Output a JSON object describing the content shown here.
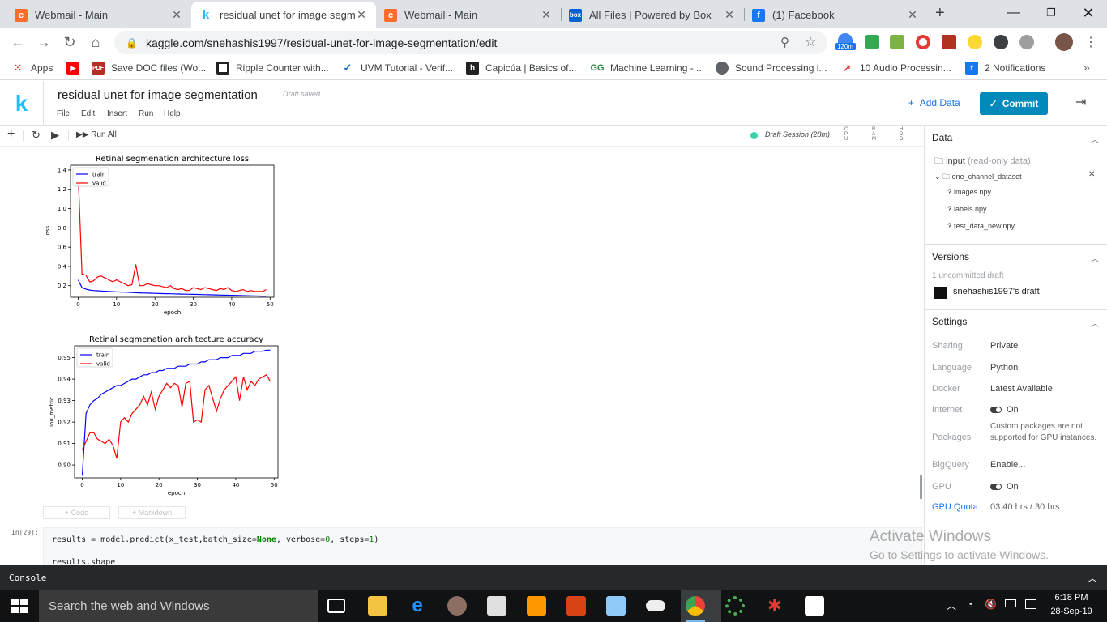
{
  "browser": {
    "tabs": [
      {
        "title": "Webmail - Main",
        "icon": "cpanel-icon",
        "color": "#ff6c2c"
      },
      {
        "title": "residual unet for image segme",
        "icon": "kaggle-icon",
        "color": "#20beff"
      },
      {
        "title": "Webmail - Main",
        "icon": "cpanel-icon",
        "color": "#ff6c2c"
      },
      {
        "title": "All Files | Powered by Box",
        "icon": "box-icon",
        "color": "#0061d5"
      },
      {
        "title": "(1) Facebook",
        "icon": "facebook-icon",
        "color": "#1877f2"
      }
    ],
    "url": "kaggle.com/snehashis1997/residual-unet-for-image-segmentation/edit",
    "extension_badge": "120m",
    "bookmarks": [
      {
        "label": "Apps"
      },
      {
        "label": ""
      },
      {
        "label": "Save DOC files (Wo..."
      },
      {
        "label": "Ripple Counter with..."
      },
      {
        "label": "UVM Tutorial - Verif..."
      },
      {
        "label": "Capicúa | Basics of..."
      },
      {
        "label": "Machine Learning -..."
      },
      {
        "label": "Sound Processing i..."
      },
      {
        "label": "10 Audio Processin..."
      },
      {
        "label": "2 Notifications"
      }
    ]
  },
  "kaggle": {
    "logo": "k",
    "title": "residual unet for image segmentation",
    "draft_status": "Draft saved",
    "menu": [
      "File",
      "Edit",
      "Insert",
      "Run",
      "Help"
    ],
    "add_data": "Add Data",
    "commit": "Commit",
    "run_all": "Run All",
    "session": "Draft Session (28m)",
    "meters": [
      "CPU",
      "RAM",
      "HDD"
    ],
    "add_code": "+ Code",
    "add_markdown": "+ Markdown",
    "cell_prompt": "In[29]:",
    "code_line1_pre": "results = model.predict(x_test,batch_size=",
    "code_line1_kw": "None",
    "code_line1_mid": ", verbose=",
    "code_line1_num1": "0",
    "code_line1_mid2": ", steps=",
    "code_line1_num2": "1",
    "code_line1_post": ")",
    "code_line2": "results.shape"
  },
  "panel": {
    "data_title": "Data",
    "input_label": "input",
    "input_note": "(read-only data)",
    "dataset": "one_channel_dataset",
    "files": [
      "images.npy",
      "labels.npy",
      "test_data_new.npy"
    ],
    "versions_title": "Versions",
    "uncommitted": "1 uncommitted draft",
    "draft_owner": "snehashis1997's draft",
    "settings_title": "Settings",
    "settings": [
      {
        "label": "Sharing",
        "value": "Private"
      },
      {
        "label": "Language",
        "value": "Python"
      },
      {
        "label": "Docker",
        "value": "Latest Available"
      },
      {
        "label": "Internet",
        "value": "On"
      },
      {
        "label": "Packages",
        "value": "Custom packages are not supported for GPU instances."
      },
      {
        "label": "BigQuery",
        "value": "Enable..."
      },
      {
        "label": "GPU",
        "value": "On"
      },
      {
        "label": "GPU Quota",
        "value": "03:40 hrs / 30 hrs"
      }
    ]
  },
  "console_label": "Console",
  "watermark": {
    "line1": "Activate Windows",
    "line2": "Go to Settings to activate Windows."
  },
  "taskbar": {
    "search": "Search the web and Windows",
    "time": "6:18 PM",
    "date": "28-Sep-19"
  },
  "chart_data": [
    {
      "type": "line",
      "title": "Retinal segmenation architecture loss",
      "xlabel": "epoch",
      "ylabel": "loss",
      "xlim": [
        -2,
        51
      ],
      "ylim": [
        0.08,
        1.45
      ],
      "xticks": [
        0,
        10,
        20,
        30,
        40,
        50
      ],
      "yticks": [
        0.2,
        0.4,
        0.6,
        0.8,
        1.0,
        1.2,
        1.4
      ],
      "ytick_labels": [
        "0.2",
        "0.4",
        "0.6",
        "0.8",
        "1.0",
        "1.2",
        "1.4"
      ],
      "legend": "top-left",
      "series": [
        {
          "name": "train",
          "color": "#0000ff",
          "x": [
            0,
            1,
            2,
            3,
            4,
            5,
            6,
            7,
            8,
            9,
            10,
            11,
            12,
            13,
            14,
            15,
            16,
            17,
            18,
            19,
            20,
            21,
            22,
            23,
            24,
            25,
            26,
            27,
            28,
            29,
            30,
            31,
            32,
            33,
            34,
            35,
            36,
            37,
            38,
            39,
            40,
            41,
            42,
            43,
            44,
            45,
            46,
            47,
            48,
            49
          ],
          "values": [
            0.26,
            0.18,
            0.165,
            0.155,
            0.15,
            0.147,
            0.145,
            0.142,
            0.14,
            0.138,
            0.136,
            0.134,
            0.133,
            0.131,
            0.129,
            0.127,
            0.125,
            0.124,
            0.123,
            0.122,
            0.12,
            0.119,
            0.118,
            0.117,
            0.116,
            0.115,
            0.114,
            0.113,
            0.112,
            0.111,
            0.11,
            0.109,
            0.108,
            0.107,
            0.106,
            0.105,
            0.104,
            0.103,
            0.102,
            0.101,
            0.1,
            0.099,
            0.098,
            0.097,
            0.096,
            0.095,
            0.094,
            0.093,
            0.092,
            0.091
          ]
        },
        {
          "name": "valid",
          "color": "#ff0000",
          "x": [
            0,
            1,
            2,
            3,
            4,
            5,
            6,
            7,
            8,
            9,
            10,
            11,
            12,
            13,
            14,
            15,
            16,
            17,
            18,
            19,
            20,
            21,
            22,
            23,
            24,
            25,
            26,
            27,
            28,
            29,
            30,
            31,
            32,
            33,
            34,
            35,
            36,
            37,
            38,
            39,
            40,
            41,
            42,
            43,
            44,
            45,
            46,
            47,
            48,
            49
          ],
          "values": [
            1.35,
            0.32,
            0.31,
            0.24,
            0.25,
            0.29,
            0.3,
            0.28,
            0.26,
            0.24,
            0.26,
            0.24,
            0.22,
            0.2,
            0.21,
            0.42,
            0.2,
            0.2,
            0.22,
            0.21,
            0.2,
            0.2,
            0.19,
            0.18,
            0.2,
            0.17,
            0.16,
            0.17,
            0.15,
            0.15,
            0.18,
            0.17,
            0.16,
            0.18,
            0.17,
            0.16,
            0.15,
            0.17,
            0.16,
            0.18,
            0.15,
            0.14,
            0.15,
            0.16,
            0.14,
            0.15,
            0.14,
            0.14,
            0.14,
            0.16
          ]
        }
      ]
    },
    {
      "type": "line",
      "title": "Retinal segmenation architecture accuracy",
      "xlabel": "epoch",
      "ylabel": "iou_metric",
      "xlim": [
        -2,
        51
      ],
      "ylim": [
        0.894,
        0.9555
      ],
      "xticks": [
        0,
        10,
        20,
        30,
        40,
        50
      ],
      "yticks": [
        0.9,
        0.91,
        0.92,
        0.93,
        0.94,
        0.95
      ],
      "ytick_labels": [
        "0.90",
        "0.91",
        "0.92",
        "0.93",
        "0.94",
        "0.95"
      ],
      "legend": "top-left",
      "series": [
        {
          "name": "train",
          "color": "#0000ff",
          "x": [
            0,
            1,
            2,
            3,
            4,
            5,
            6,
            7,
            8,
            9,
            10,
            11,
            12,
            13,
            14,
            15,
            16,
            17,
            18,
            19,
            20,
            21,
            22,
            23,
            24,
            25,
            26,
            27,
            28,
            29,
            30,
            31,
            32,
            33,
            34,
            35,
            36,
            37,
            38,
            39,
            40,
            41,
            42,
            43,
            44,
            45,
            46,
            47,
            48,
            49
          ],
          "values": [
            0.895,
            0.924,
            0.928,
            0.93,
            0.931,
            0.933,
            0.934,
            0.935,
            0.936,
            0.937,
            0.937,
            0.938,
            0.939,
            0.94,
            0.94,
            0.941,
            0.942,
            0.942,
            0.943,
            0.943,
            0.944,
            0.944,
            0.945,
            0.945,
            0.945,
            0.946,
            0.946,
            0.946,
            0.947,
            0.947,
            0.947,
            0.948,
            0.948,
            0.949,
            0.949,
            0.949,
            0.95,
            0.95,
            0.95,
            0.951,
            0.951,
            0.951,
            0.952,
            0.952,
            0.952,
            0.953,
            0.953,
            0.953,
            0.9535,
            0.9535
          ]
        },
        {
          "name": "valid",
          "color": "#ff0000",
          "x": [
            0,
            1,
            2,
            3,
            4,
            5,
            6,
            7,
            8,
            9,
            10,
            11,
            12,
            13,
            14,
            15,
            16,
            17,
            18,
            19,
            20,
            21,
            22,
            23,
            24,
            25,
            26,
            27,
            28,
            29,
            30,
            31,
            32,
            33,
            34,
            35,
            36,
            37,
            38,
            39,
            40,
            41,
            42,
            43,
            44,
            45,
            46,
            47,
            48,
            49
          ],
          "values": [
            0.907,
            0.911,
            0.915,
            0.915,
            0.912,
            0.911,
            0.91,
            0.912,
            0.909,
            0.903,
            0.92,
            0.922,
            0.92,
            0.924,
            0.926,
            0.928,
            0.932,
            0.928,
            0.934,
            0.926,
            0.932,
            0.935,
            0.938,
            0.936,
            0.938,
            0.937,
            0.927,
            0.938,
            0.939,
            0.92,
            0.921,
            0.92,
            0.935,
            0.937,
            0.931,
            0.925,
            0.931,
            0.935,
            0.937,
            0.939,
            0.941,
            0.93,
            0.941,
            0.935,
            0.939,
            0.937,
            0.94,
            0.941,
            0.942,
            0.939
          ]
        }
      ]
    }
  ]
}
